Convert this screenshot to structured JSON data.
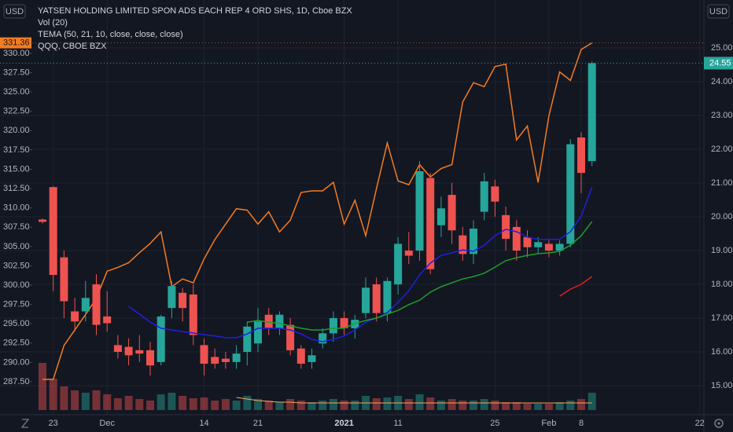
{
  "chart_data": {
    "type": "candlestick",
    "title": "YATSEN HOLDING LIMITED SPON ADS EACH REP 4 ORD SHS, 1D, Cboe BZX",
    "currency": "USD",
    "categories": [
      null,
      "23",
      null,
      null,
      null,
      null,
      "Dec",
      null,
      null,
      null,
      null,
      null,
      null,
      null,
      null,
      "14",
      null,
      null,
      null,
      null,
      "21",
      null,
      null,
      null,
      null,
      null,
      null,
      null,
      "2021",
      null,
      null,
      null,
      null,
      "11",
      null,
      null,
      null,
      null,
      null,
      null,
      null,
      null,
      "25",
      null,
      null,
      null,
      null,
      "Feb",
      null,
      null,
      "8",
      null,
      null,
      null,
      null,
      null,
      null,
      null,
      null,
      null,
      null,
      "22"
    ],
    "open": [
      19.92,
      20.88,
      18.8,
      17.2,
      17.2,
      18.0,
      17.05,
      16.2,
      16.15,
      16.05,
      16.05,
      15.7,
      17.3,
      17.75,
      17.7,
      16.2,
      15.85,
      15.8,
      15.7,
      16.0,
      16.25,
      17.1,
      16.7,
      16.8,
      16.1,
      15.7,
      16.25,
      16.55,
      17.0,
      16.7,
      17.15,
      18.0,
      17.15,
      18.0,
      19.0,
      19.0,
      21.15,
      19.75,
      20.65,
      19.45,
      18.9,
      20.15,
      20.9,
      20.05,
      19.7,
      19.4,
      19.1,
      19.2,
      19.0,
      19.2,
      22.35,
      21.65,
      null,
      null,
      null,
      null,
      null,
      null,
      null,
      null,
      null,
      null
    ],
    "high": [
      19.95,
      20.9,
      19.0,
      17.6,
      18.1,
      18.3,
      17.8,
      16.5,
      16.4,
      16.5,
      16.3,
      17.1,
      18.1,
      17.9,
      18.0,
      16.4,
      16.1,
      16.0,
      16.2,
      16.9,
      17.3,
      17.3,
      17.2,
      17.0,
      16.2,
      16.1,
      16.7,
      17.2,
      17.2,
      17.1,
      18.2,
      18.2,
      18.2,
      19.4,
      19.55,
      21.65,
      21.3,
      20.6,
      21.0,
      19.7,
      19.9,
      21.3,
      21.1,
      20.3,
      19.9,
      19.6,
      19.4,
      19.3,
      19.3,
      22.3,
      22.5,
      24.6,
      null,
      null,
      null,
      null,
      null,
      null,
      null,
      null,
      null,
      null
    ],
    "low": [
      19.8,
      17.8,
      17.0,
      16.6,
      16.9,
      16.5,
      16.6,
      15.8,
      15.6,
      15.7,
      15.3,
      15.6,
      17.0,
      16.9,
      16.2,
      15.3,
      15.5,
      15.5,
      15.5,
      15.6,
      16.0,
      16.5,
      16.5,
      15.9,
      15.5,
      15.5,
      16.1,
      16.3,
      16.5,
      16.4,
      17.0,
      16.9,
      16.9,
      17.7,
      18.6,
      18.7,
      18.3,
      19.4,
      19.2,
      18.7,
      18.6,
      19.9,
      20.0,
      19.0,
      18.7,
      18.8,
      18.9,
      18.8,
      18.85,
      19.1,
      20.7,
      21.5,
      null,
      null,
      null,
      null,
      null,
      null,
      null,
      null,
      null,
      null
    ],
    "close": [
      19.85,
      18.28,
      17.5,
      16.9,
      17.6,
      16.8,
      16.85,
      16.0,
      15.9,
      15.95,
      15.6,
      17.05,
      17.95,
      17.3,
      16.5,
      15.65,
      15.65,
      15.7,
      15.95,
      16.75,
      16.9,
      16.7,
      17.1,
      16.05,
      15.65,
      15.9,
      16.55,
      17.0,
      16.7,
      16.95,
      17.9,
      17.15,
      18.1,
      19.2,
      18.85,
      21.35,
      18.45,
      20.25,
      19.6,
      18.9,
      19.65,
      21.05,
      20.45,
      19.35,
      19.0,
      19.1,
      19.25,
      19.0,
      19.2,
      22.15,
      21.3,
      24.55,
      null,
      null,
      null,
      null,
      null,
      null,
      null,
      null,
      null,
      null
    ],
    "up_color": "#26a69a",
    "down_color": "#ef5350",
    "ylim": [
      14.14,
      26.42
    ],
    "yticks": [
      {
        "value": 15,
        "label": "15.00"
      },
      {
        "value": 16,
        "label": "16.00"
      },
      {
        "value": 17,
        "label": "17.00"
      },
      {
        "value": 18,
        "label": "18.00"
      },
      {
        "value": 19,
        "label": "19.00"
      },
      {
        "value": 20,
        "label": "20.00"
      },
      {
        "value": 21,
        "label": "21.00"
      },
      {
        "value": 22,
        "label": "22.00"
      },
      {
        "value": 23,
        "label": "23.00"
      },
      {
        "value": 24,
        "label": "24.00"
      },
      {
        "value": 25,
        "label": "25.00"
      }
    ],
    "y2lim": [
      283.23,
      336.91
    ],
    "y2ticks": [
      {
        "value": 287.5,
        "label": "287.50"
      },
      {
        "value": 290,
        "label": "290.00"
      },
      {
        "value": 292.5,
        "label": "292.50"
      },
      {
        "value": 295,
        "label": "295.00"
      },
      {
        "value": 297.5,
        "label": "297.50"
      },
      {
        "value": 300,
        "label": "300.00"
      },
      {
        "value": 302.5,
        "label": "302.50"
      },
      {
        "value": 305,
        "label": "305.00"
      },
      {
        "value": 307.5,
        "label": "307.50"
      },
      {
        "value": 310,
        "label": "310.00"
      },
      {
        "value": 312.5,
        "label": "312.50"
      },
      {
        "value": 315,
        "label": "315.00"
      },
      {
        "value": 317.5,
        "label": "317.50"
      },
      {
        "value": 320,
        "label": "320.00"
      },
      {
        "value": 322.5,
        "label": "322.50"
      },
      {
        "value": 325,
        "label": "325.00"
      },
      {
        "value": 327.5,
        "label": "327.50"
      },
      {
        "value": 330,
        "label": "330.00"
      }
    ],
    "grid": true,
    "volume": {
      "name": "Vol (20)",
      "values": [
        60,
        40,
        30,
        25,
        22,
        25,
        20,
        15,
        18,
        14,
        12,
        20,
        22,
        18,
        15,
        16,
        12,
        14,
        12,
        18,
        14,
        12,
        10,
        14,
        12,
        10,
        12,
        14,
        12,
        12,
        18,
        15,
        16,
        18,
        14,
        20,
        16,
        12,
        14,
        12,
        12,
        14,
        12,
        10,
        10,
        8,
        8,
        8,
        10,
        12,
        14,
        22,
        null,
        null,
        null,
        null,
        null,
        null,
        null,
        null,
        null,
        null
      ],
      "ma": [
        null,
        null,
        null,
        null,
        null,
        null,
        null,
        null,
        null,
        null,
        null,
        null,
        null,
        null,
        null,
        null,
        null,
        null,
        16,
        14,
        12,
        11,
        10,
        10,
        9,
        9,
        9,
        9,
        9,
        9,
        9,
        9,
        9,
        9,
        9,
        9,
        9,
        9,
        9,
        9,
        9,
        9,
        9,
        9,
        9,
        9,
        9,
        9,
        9,
        9,
        9,
        9,
        null,
        null,
        null,
        null,
        null,
        null,
        null,
        null,
        null,
        null
      ],
      "ma_color": "#f7a35c",
      "ylim": [
        0,
        100
      ]
    },
    "tema": {
      "name": "TEMA (50, 21, 10, close, close, close)",
      "series": [
        {
          "color": "#1f1fe0",
          "values": [
            null,
            null,
            null,
            null,
            null,
            null,
            null,
            null,
            17.35,
            17.12,
            16.88,
            16.7,
            16.65,
            16.6,
            16.56,
            16.51,
            16.47,
            16.42,
            16.42,
            16.53,
            16.7,
            16.7,
            16.7,
            16.65,
            16.53,
            16.37,
            16.3,
            16.37,
            16.47,
            16.65,
            16.88,
            17.0,
            17.16,
            17.47,
            17.81,
            18.28,
            18.63,
            18.86,
            18.93,
            19.02,
            18.98,
            19.16,
            19.44,
            19.63,
            19.56,
            19.4,
            19.33,
            19.33,
            19.33,
            19.56,
            20.02,
            20.88,
            null,
            null,
            null,
            null,
            null,
            null,
            null,
            null,
            null,
            null
          ]
        },
        {
          "color": "#1e9e2a",
          "values": [
            null,
            null,
            null,
            null,
            null,
            null,
            null,
            null,
            null,
            null,
            null,
            null,
            null,
            null,
            null,
            null,
            null,
            null,
            null,
            16.88,
            16.93,
            16.88,
            16.84,
            16.77,
            16.7,
            16.65,
            16.65,
            16.7,
            16.7,
            16.84,
            16.93,
            17.0,
            17.12,
            17.23,
            17.4,
            17.53,
            17.77,
            17.93,
            18.05,
            18.16,
            18.23,
            18.33,
            18.51,
            18.7,
            18.79,
            18.86,
            18.91,
            18.93,
            18.98,
            19.16,
            19.44,
            19.86,
            null,
            null,
            null,
            null,
            null,
            null,
            null,
            null,
            null,
            null
          ]
        },
        {
          "color": "#e0201e",
          "values": [
            null,
            null,
            null,
            null,
            null,
            null,
            null,
            null,
            null,
            null,
            null,
            null,
            null,
            null,
            null,
            null,
            null,
            null,
            null,
            null,
            null,
            null,
            null,
            null,
            null,
            null,
            null,
            null,
            null,
            null,
            null,
            null,
            null,
            null,
            null,
            null,
            null,
            null,
            null,
            null,
            null,
            null,
            null,
            null,
            null,
            null,
            null,
            null,
            17.65,
            17.86,
            18.0,
            18.23,
            null,
            null,
            null,
            null,
            null,
            null,
            null,
            null,
            null,
            null
          ]
        }
      ]
    },
    "compare": {
      "name": "QQQ, CBOE BZX",
      "color": "#f57c1f",
      "axis": "y2",
      "values": [
        287.8,
        287.8,
        292.2,
        294.2,
        296.2,
        298.3,
        301.8,
        302.3,
        302.9,
        304.2,
        305.4,
        306.9,
        299.8,
        300.8,
        300.3,
        303.4,
        305.9,
        307.9,
        309.9,
        309.7,
        307.9,
        309.5,
        306.9,
        308.4,
        312.0,
        312.2,
        312.2,
        313.3,
        307.9,
        311.0,
        306.4,
        312.5,
        318.4,
        313.5,
        313.0,
        315.6,
        314.0,
        315.1,
        315.6,
        323.7,
        326.2,
        325.7,
        328.3,
        328.6,
        318.8,
        320.6,
        313.3,
        321.9,
        327.6,
        326.5,
        330.5,
        331.36,
        null,
        null,
        null,
        null,
        null,
        null,
        null,
        null,
        null,
        null
      ]
    }
  }
}
